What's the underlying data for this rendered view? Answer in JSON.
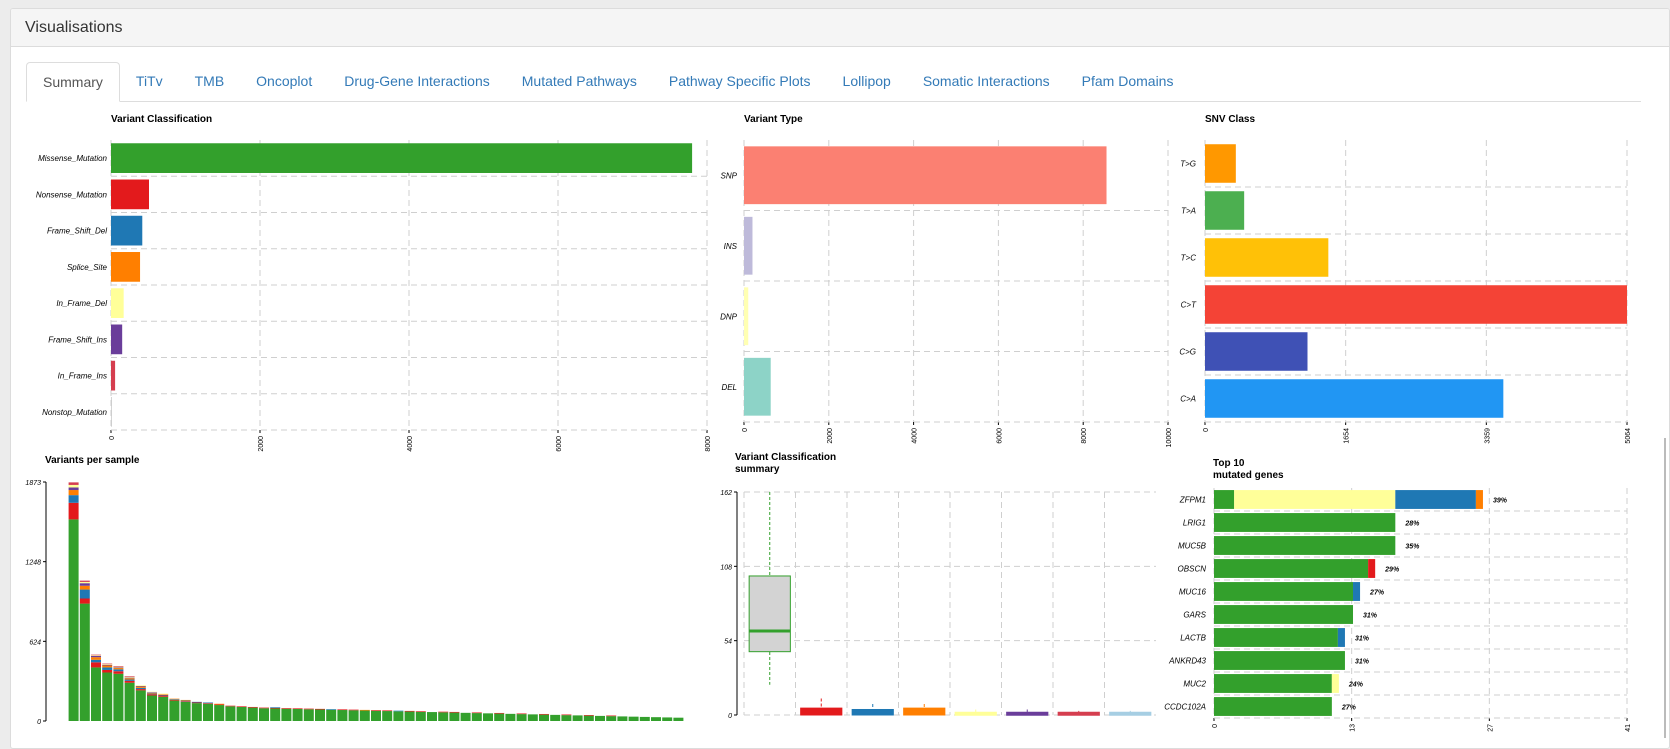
{
  "panel": {
    "title": "Visualisations"
  },
  "tabs": [
    {
      "label": "Summary",
      "active": true
    },
    {
      "label": "TiTv"
    },
    {
      "label": "TMB"
    },
    {
      "label": "Oncoplot"
    },
    {
      "label": "Drug-Gene Interactions"
    },
    {
      "label": "Mutated Pathways"
    },
    {
      "label": "Pathway Specific Plots"
    },
    {
      "label": "Lollipop"
    },
    {
      "label": "Somatic Interactions"
    },
    {
      "label": "Pfam Domains"
    }
  ],
  "chart_data": [
    {
      "id": "variant_classification",
      "type": "bar",
      "orientation": "horizontal",
      "title": "Variant Classification",
      "categories": [
        "Missense_Mutation",
        "Nonsense_Mutation",
        "Frame_Shift_Del",
        "Splice_Site",
        "In_Frame_Del",
        "Frame_Shift_Ins",
        "In_Frame_Ins",
        "Nonstop_Mutation"
      ],
      "values": [
        7800,
        510,
        420,
        390,
        170,
        150,
        55,
        5
      ],
      "colors": [
        "#33a02c",
        "#e31a1c",
        "#1f78b4",
        "#ff7f00",
        "#ffff99",
        "#6a3d9a",
        "#d53e4f",
        "#8c8c8c"
      ],
      "xticks": [
        "0",
        "2000",
        "4000",
        "6000",
        "8000"
      ],
      "xlim": [
        0,
        8000
      ]
    },
    {
      "id": "variant_type",
      "type": "bar",
      "orientation": "horizontal",
      "title": "Variant Type",
      "categories": [
        "SNP",
        "INS",
        "DNP",
        "DEL"
      ],
      "values": [
        8550,
        200,
        100,
        630
      ],
      "colors": [
        "#fb8072",
        "#bebada",
        "#ffffb3",
        "#8dd3c7"
      ],
      "xticks": [
        "0",
        "2000",
        "4000",
        "6000",
        "8000",
        "10000"
      ],
      "xlim": [
        0,
        10000
      ]
    },
    {
      "id": "snv_class",
      "type": "bar",
      "orientation": "horizontal",
      "title": "SNV Class",
      "categories": [
        "T>G",
        "T>A",
        "T>C",
        "C>T",
        "C>G",
        "C>A"
      ],
      "values": [
        370,
        470,
        1480,
        5064,
        1230,
        3580
      ],
      "colors": [
        "#ff9800",
        "#4caf50",
        "#ffc107",
        "#f44336",
        "#3f51b5",
        "#2196f3"
      ],
      "xticks": [
        "0",
        "1654",
        "3359",
        "5064"
      ],
      "xlim": [
        0,
        5064
      ]
    },
    {
      "id": "variants_per_sample",
      "type": "bar",
      "stacked": true,
      "title": "Variants per sample",
      "yticks": [
        "0",
        "624",
        "1248",
        "1873"
      ],
      "ylim": [
        0,
        1873
      ],
      "series_colors": [
        "#33a02c",
        "#e31a1c",
        "#1f78b4",
        "#ff7f00",
        "#6a3d9a",
        "#ffff99",
        "#d53e4f"
      ],
      "samples": [
        [
          1580,
          130,
          60,
          40,
          20,
          20,
          20
        ],
        [
          920,
          40,
          70,
          30,
          20,
          10,
          10
        ],
        [
          420,
          40,
          20,
          20,
          10,
          5,
          5
        ],
        [
          380,
          20,
          20,
          15,
          5,
          5,
          5
        ],
        [
          370,
          20,
          15,
          10,
          5,
          5,
          5
        ],
        [
          300,
          15,
          10,
          10,
          5,
          5,
          5
        ],
        [
          240,
          10,
          10,
          10,
          5,
          5,
          0
        ],
        [
          200,
          10,
          5,
          5,
          5,
          5,
          0
        ],
        [
          190,
          10,
          5,
          5,
          0,
          5,
          0
        ],
        [
          160,
          5,
          5,
          5,
          0,
          0,
          0
        ],
        [
          150,
          5,
          5,
          5,
          0,
          0,
          0
        ],
        [
          140,
          5,
          5,
          0,
          0,
          0,
          0
        ],
        [
          135,
          5,
          5,
          0,
          0,
          0,
          0
        ],
        [
          125,
          5,
          0,
          5,
          0,
          0,
          0
        ],
        [
          115,
          5,
          0,
          0,
          0,
          0,
          0
        ],
        [
          110,
          5,
          0,
          0,
          0,
          0,
          0
        ],
        [
          105,
          5,
          0,
          0,
          0,
          0,
          0
        ],
        [
          100,
          5,
          0,
          0,
          0,
          0,
          0
        ],
        [
          98,
          5,
          5,
          0,
          0,
          0,
          0
        ],
        [
          96,
          5,
          0,
          0,
          0,
          0,
          0
        ],
        [
          94,
          5,
          0,
          0,
          0,
          0,
          0
        ],
        [
          92,
          5,
          0,
          0,
          0,
          0,
          0
        ],
        [
          90,
          5,
          0,
          0,
          0,
          0,
          0
        ],
        [
          88,
          0,
          5,
          0,
          0,
          0,
          0
        ],
        [
          86,
          5,
          0,
          0,
          0,
          0,
          0
        ],
        [
          84,
          5,
          0,
          0,
          0,
          0,
          0
        ],
        [
          82,
          0,
          0,
          5,
          0,
          0,
          0
        ],
        [
          80,
          5,
          0,
          0,
          0,
          0,
          0
        ],
        [
          78,
          5,
          0,
          0,
          0,
          0,
          0
        ],
        [
          76,
          0,
          5,
          0,
          0,
          0,
          0
        ],
        [
          74,
          5,
          0,
          0,
          0,
          0,
          0
        ],
        [
          72,
          5,
          0,
          0,
          0,
          0,
          0
        ],
        [
          70,
          0,
          0,
          0,
          0,
          0,
          0
        ],
        [
          68,
          5,
          0,
          0,
          0,
          0,
          0
        ],
        [
          66,
          5,
          0,
          0,
          0,
          0,
          0
        ],
        [
          64,
          0,
          0,
          0,
          0,
          0,
          0
        ],
        [
          62,
          5,
          0,
          0,
          0,
          0,
          0
        ],
        [
          60,
          0,
          0,
          0,
          0,
          0,
          0
        ],
        [
          58,
          5,
          0,
          0,
          0,
          0,
          0
        ],
        [
          56,
          0,
          0,
          0,
          0,
          0,
          0
        ],
        [
          54,
          5,
          0,
          0,
          0,
          0,
          0
        ],
        [
          52,
          0,
          0,
          0,
          0,
          0,
          0
        ],
        [
          50,
          5,
          0,
          0,
          0,
          0,
          0
        ],
        [
          48,
          0,
          0,
          0,
          0,
          0,
          0
        ],
        [
          46,
          5,
          0,
          0,
          0,
          0,
          0
        ],
        [
          44,
          0,
          0,
          0,
          0,
          0,
          0
        ],
        [
          42,
          5,
          0,
          0,
          0,
          0,
          0
        ],
        [
          40,
          0,
          0,
          0,
          0,
          0,
          0
        ],
        [
          38,
          5,
          0,
          0,
          0,
          0,
          0
        ],
        [
          36,
          0,
          0,
          0,
          0,
          0,
          0
        ],
        [
          34,
          0,
          0,
          0,
          0,
          0,
          0
        ],
        [
          32,
          0,
          0,
          0,
          0,
          0,
          0
        ],
        [
          30,
          0,
          0,
          0,
          0,
          0,
          0
        ],
        [
          28,
          0,
          0,
          0,
          0,
          0,
          0
        ],
        [
          26,
          0,
          0,
          0,
          0,
          0,
          0
        ]
      ]
    },
    {
      "id": "variant_classification_summary",
      "type": "box",
      "title": "Variant Classification\nsummary",
      "yticks": [
        "0",
        "54",
        "108",
        "162"
      ],
      "ylim": [
        0,
        162
      ],
      "boxes": [
        {
          "color": "#33a02c",
          "min": 22,
          "q1": 46,
          "median": 61,
          "q3": 101,
          "max": 162
        },
        {
          "color": "#e31a1c",
          "min": 0,
          "q1": 0,
          "median": 2,
          "q3": 5,
          "max": 12
        },
        {
          "color": "#1f78b4",
          "min": 0,
          "q1": 0,
          "median": 2,
          "q3": 4,
          "max": 8
        },
        {
          "color": "#ff7f00",
          "min": 0,
          "q1": 0,
          "median": 2,
          "q3": 5,
          "max": 8
        },
        {
          "color": "#ffff99",
          "min": 0,
          "q1": 0,
          "median": 1,
          "q3": 2,
          "max": 4
        },
        {
          "color": "#6a3d9a",
          "min": 0,
          "q1": 0,
          "median": 1,
          "q3": 2,
          "max": 4
        },
        {
          "color": "#d53e4f",
          "min": 0,
          "q1": 0,
          "median": 1,
          "q3": 2,
          "max": 3
        },
        {
          "color": "#a6cee3",
          "min": 0,
          "q1": 0,
          "median": 1,
          "q3": 2,
          "max": 3
        }
      ]
    },
    {
      "id": "top10_mutated_genes",
      "type": "bar",
      "orientation": "horizontal",
      "stacked": true,
      "title": "Top 10\nmutated genes",
      "xticks": [
        "0",
        "13",
        "27",
        "41"
      ],
      "xlim": [
        0,
        41
      ],
      "series_colors": [
        "#33a02c",
        "#ffff99",
        "#1f78b4",
        "#ff7f00",
        "#e31a1c"
      ],
      "genes": [
        {
          "name": "ZFPM1",
          "pct": "39%",
          "segments": [
            2,
            16,
            8,
            0.7,
            0
          ]
        },
        {
          "name": "LRIG1",
          "pct": "28%",
          "segments": [
            18,
            0,
            0,
            0,
            0
          ]
        },
        {
          "name": "MUC5B",
          "pct": "35%",
          "segments": [
            18,
            0,
            0,
            0,
            0
          ]
        },
        {
          "name": "OBSCN",
          "pct": "29%",
          "segments": [
            15.3,
            0,
            0,
            0,
            0.7
          ]
        },
        {
          "name": "MUC16",
          "pct": "27%",
          "segments": [
            13.8,
            0,
            0.7,
            0,
            0
          ]
        },
        {
          "name": "GARS",
          "pct": "31%",
          "segments": [
            13.8,
            0,
            0,
            0,
            0
          ]
        },
        {
          "name": "LACTB",
          "pct": "31%",
          "segments": [
            12.3,
            0,
            0.7,
            0,
            0
          ]
        },
        {
          "name": "ANKRD43",
          "pct": "31%",
          "segments": [
            13,
            0,
            0,
            0,
            0
          ]
        },
        {
          "name": "MUC2",
          "pct": "24%",
          "segments": [
            11.7,
            0.7,
            0,
            0,
            0
          ]
        },
        {
          "name": "CCDC102A",
          "pct": "27%",
          "segments": [
            11.7,
            0,
            0,
            0,
            0
          ]
        }
      ]
    }
  ]
}
